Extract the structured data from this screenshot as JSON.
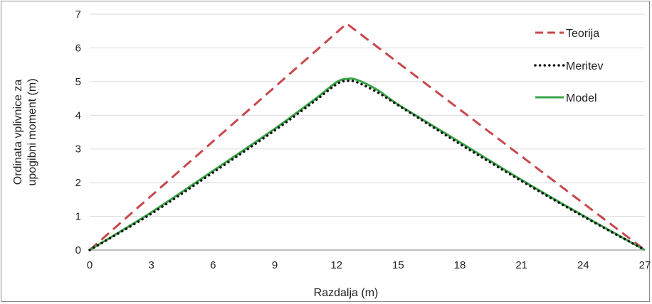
{
  "chart_data": {
    "type": "line",
    "title": "",
    "xlabel": "Razdalja (m)",
    "ylabel_lines": [
      "Ordinata vplivnice za",
      "upogibni moment (m)"
    ],
    "xlim": [
      0,
      27
    ],
    "ylim": [
      0,
      7
    ],
    "xticks": [
      0,
      3,
      6,
      9,
      12,
      15,
      18,
      21,
      24,
      27
    ],
    "yticks": [
      0,
      1,
      2,
      3,
      4,
      5,
      6,
      7
    ],
    "grid": "horizontal",
    "legend_position": "top-right",
    "series": [
      {
        "name": "Teorija",
        "color": "#c8474b",
        "style": "dashed",
        "x": [
          0,
          12.5,
          27
        ],
        "y": [
          0,
          6.72,
          0
        ]
      },
      {
        "name": "Meritev",
        "color": "#111111",
        "style": "dotted",
        "x": [
          0,
          3,
          6,
          9,
          11,
          12,
          12.5,
          13,
          14,
          15,
          18,
          21,
          24,
          27
        ],
        "y": [
          0,
          1.08,
          2.3,
          3.55,
          4.45,
          4.92,
          5.02,
          4.98,
          4.68,
          4.3,
          3.15,
          2.05,
          1.0,
          0
        ]
      },
      {
        "name": "Model",
        "color": "#3aa646",
        "style": "solid",
        "x": [
          0,
          3,
          6,
          9,
          11,
          12,
          12.5,
          13,
          14,
          15,
          18,
          21,
          24,
          27
        ],
        "y": [
          0,
          1.12,
          2.35,
          3.6,
          4.5,
          4.98,
          5.08,
          5.05,
          4.75,
          4.32,
          3.2,
          2.08,
          1.02,
          0
        ]
      }
    ]
  }
}
